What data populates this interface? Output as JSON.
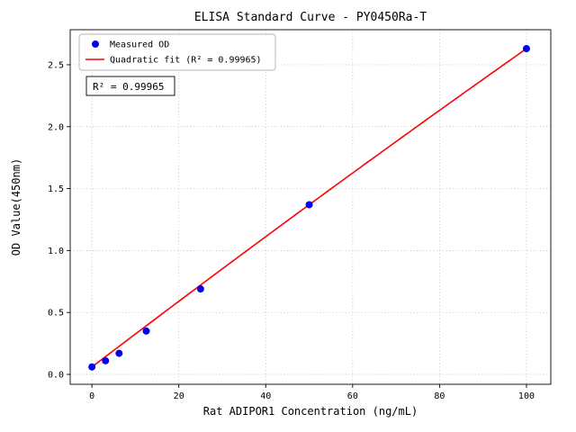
{
  "chart_data": {
    "type": "scatter",
    "title": "ELISA Standard Curve - PY0450Ra-T",
    "xlabel": "Rat ADIPOR1 Concentration (ng/mL)",
    "ylabel": "OD Value(450nm)",
    "xlim": [
      -5,
      105.6
    ],
    "ylim": [
      -0.08,
      2.783
    ],
    "xticks": [
      0,
      20,
      40,
      60,
      80,
      100
    ],
    "xtick_labels": [
      "0",
      "20",
      "40",
      "60",
      "80",
      "100"
    ],
    "yticks": [
      0.0,
      0.5,
      1.0,
      1.5,
      2.0,
      2.5
    ],
    "ytick_labels": [
      "0.0",
      "0.5",
      "1.0",
      "1.5",
      "2.0",
      "2.5"
    ],
    "grid": true,
    "legend_position": "upper-left",
    "series": [
      {
        "name": "Measured OD",
        "type": "scatter",
        "color": "#0000ee",
        "x": [
          0,
          3.125,
          6.25,
          12.5,
          25,
          50,
          100
        ],
        "y": [
          0.06,
          0.11,
          0.17,
          0.35,
          0.69,
          1.37,
          2.63
        ]
      },
      {
        "name": "Quadratic fit (R² = 0.99965)",
        "type": "line",
        "color": "#ff0000",
        "fit": {
          "a": -1e-05,
          "b": 0.0267,
          "c": 0.06
        },
        "x_range": [
          0,
          100
        ]
      }
    ],
    "annotation": "R² = 0.99965",
    "r_squared": "0.99965"
  }
}
